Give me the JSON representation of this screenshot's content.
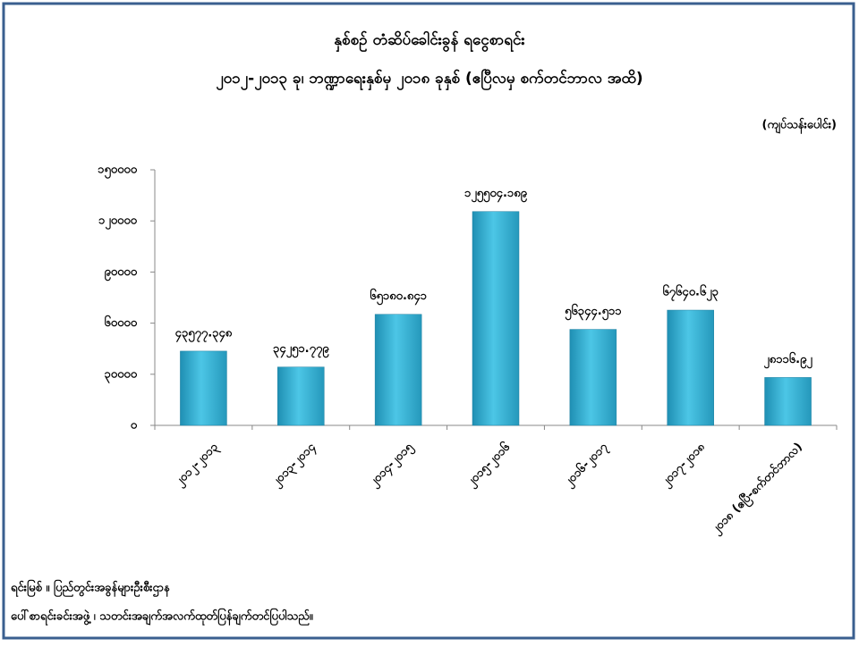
{
  "chart_data": {
    "type": "bar",
    "title": "နှစ်စဉ် တံဆိပ်ခေါင်းခွန် ရငွေစာရင်း",
    "subtitle": "၂၀၁၂-၂၀၁၃ ခု၊ ဘဏ္ဍာရေးနှစ်မှ ၂၀၁၈ ခုနှစ် (ဧပြီလမှ စက်တင်ဘာလ အထိ)",
    "unit_label": "(ကျပ်သန်းပေါင်း)",
    "categories": [
      "၂၀၁၂-၂၀၁၃",
      "၂၀၁၃-၂၀၁၄",
      "၂၀၁၄-၂၀၁၅",
      "၂၀၁၅-၂၀၁၆",
      "၂၀၁၆-၂၀၁၇",
      "၂၀၁၇-၂၀၁၈",
      "၂၀၁၈ (ဧပြီ-စက်တင်ဘာလ)"
    ],
    "values": [
      43577.348,
      34251.779,
      65180.841,
      125504.189,
      56344.511,
      67640.623,
      28116.92
    ],
    "value_labels": [
      "၄၃၅၇၇.၃၄၈",
      "၃၄၂၅၁.၇၇၉",
      "၆၅၁၈၀.၈၄၁",
      "၁၂၅၅၀၄.၁၈၉",
      "၅၆၃၄၄.၅၁၁",
      "၆၇၆၄၀.၆၂၃",
      "၂၈၁၁၆.၉၂"
    ],
    "color": "#3db4d6",
    "ylim": [
      0,
      150000
    ],
    "yticks": [
      {
        "value": 0,
        "label": "၀"
      },
      {
        "value": 30000,
        "label": "၃၀၀၀၀"
      },
      {
        "value": 60000,
        "label": "၆၀၀၀၀"
      },
      {
        "value": 90000,
        "label": "၉၀၀၀၀"
      },
      {
        "value": 120000,
        "label": "၁၂၀၀၀၀"
      },
      {
        "value": 150000,
        "label": "၁၅၀၀၀၀"
      }
    ],
    "grid": false,
    "source": [
      "ရင်းမြစ် ။ ပြည်တွင်းအခွန်များဦးစီးဌာန",
      "ပေါ်စာရင်းခင်းအဖွဲ့ ၊ သတင်းအချက်အလက်ထုတ်ပြန်ချက်တင်ပြပါသည်။"
    ]
  }
}
